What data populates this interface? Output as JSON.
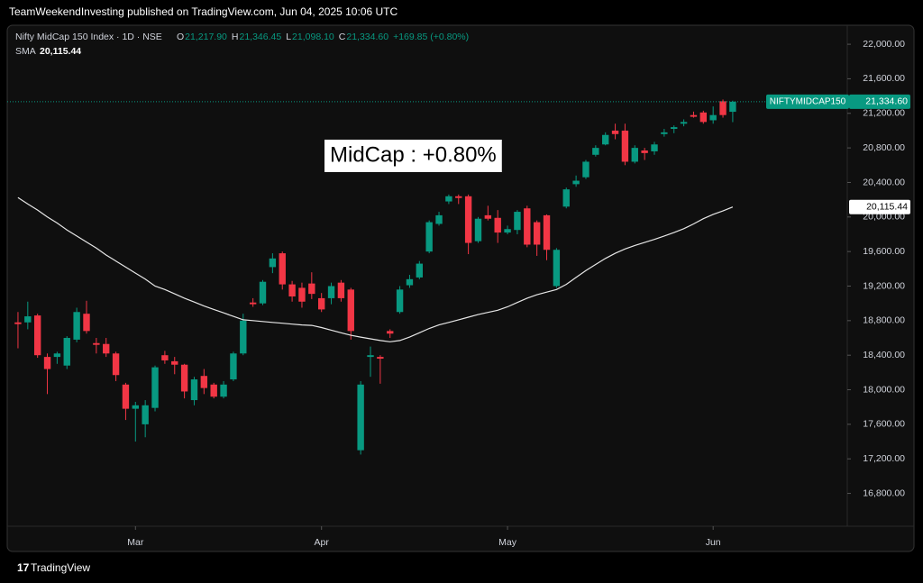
{
  "header": "TeamWeekendInvesting published on TradingView.com, Jun 04, 2025 10:06 UTC",
  "footer": "TradingView",
  "chart_data": {
    "type": "candlestick",
    "title": "Nifty MidCap 150 Index · 1D · NSE",
    "ohlc_legend": [
      {
        "key": "O",
        "text": "21,217.90"
      },
      {
        "key": "H",
        "text": "21,346.45"
      },
      {
        "key": "L",
        "text": "21,098.10"
      },
      {
        "key": "C",
        "text": "21,334.60"
      }
    ],
    "change_label": "+169.85 (+0.80%)",
    "annotation": "MidCap : +0.80%",
    "symbol_label": "NIFTYMIDCAP150",
    "last_price_label": "21,334.60",
    "up_color": "#089981",
    "down_color": "#f23645",
    "open": [
      18780,
      18780,
      18860,
      18380,
      18380,
      18280,
      18580,
      18880,
      18540,
      18530,
      18420,
      18060,
      17780,
      17600,
      17790,
      18400,
      18330,
      18290,
      17880,
      18160,
      18060,
      17920,
      18120,
      18420,
      19010,
      19000,
      19420,
      19580,
      19220,
      19180,
      19230,
      19060,
      19060,
      19240,
      19160,
      17300,
      18380,
      18380,
      18680,
      18900,
      19210,
      19300,
      19600,
      19920,
      20180,
      20240,
      20240,
      19720,
      20020,
      19990,
      19820,
      19850,
      20100,
      19940,
      20020,
      19200,
      20120,
      20380,
      20460,
      20720,
      20840,
      21000,
      21000,
      20640,
      20770,
      20760,
      20960,
      21020,
      21080,
      21180,
      21210,
      21120,
      21340,
      21217.9
    ],
    "high": [
      18900,
      19020,
      18880,
      18420,
      18440,
      18620,
      18950,
      19030,
      18600,
      18600,
      18440,
      18080,
      17860,
      17880,
      18280,
      18450,
      18380,
      18300,
      18150,
      18240,
      18080,
      18100,
      18440,
      18880,
      19060,
      19270,
      19580,
      19600,
      19260,
      19240,
      19360,
      19120,
      19240,
      19270,
      19180,
      18100,
      18500,
      18400,
      18700,
      19200,
      19330,
      19490,
      19960,
      20060,
      20260,
      20260,
      20260,
      20000,
      20130,
      20080,
      19900,
      20080,
      20130,
      19960,
      20030,
      19640,
      20340,
      20480,
      20660,
      20830,
      20980,
      21080,
      21080,
      20830,
      20800,
      20870,
      21020,
      21060,
      21130,
      21220,
      21230,
      21280,
      21360,
      21346.45
    ],
    "low": [
      18480,
      18700,
      18370,
      17950,
      18300,
      18240,
      18550,
      18650,
      18420,
      18380,
      18100,
      17650,
      17400,
      17450,
      17750,
      18300,
      18180,
      17900,
      17820,
      17950,
      17900,
      17900,
      18100,
      18400,
      18960,
      18980,
      19350,
      19160,
      19020,
      18950,
      19050,
      18900,
      18990,
      19020,
      18580,
      17250,
      18150,
      18070,
      18600,
      18880,
      19180,
      19280,
      19580,
      19900,
      20150,
      20150,
      19570,
      19700,
      19960,
      19700,
      19800,
      19800,
      19650,
      19550,
      19500,
      19180,
      20100,
      20350,
      20440,
      20700,
      20830,
      20900,
      20600,
      20620,
      20660,
      20720,
      20930,
      20970,
      21050,
      21150,
      21080,
      21080,
      21150,
      21098.1
    ],
    "close": [
      18760,
      18850,
      18400,
      18240,
      18420,
      18600,
      18900,
      18680,
      18520,
      18420,
      18170,
      17780,
      17820,
      17820,
      18260,
      18340,
      18290,
      17980,
      18120,
      18020,
      17920,
      18060,
      18420,
      18800,
      18990,
      19250,
      19520,
      19220,
      19080,
      19020,
      19110,
      18930,
      19200,
      19060,
      18680,
      18060,
      18400,
      18360,
      18650,
      19160,
      19280,
      19460,
      19940,
      20020,
      20240,
      20220,
      19700,
      19980,
      19980,
      19820,
      19860,
      20060,
      19680,
      19680,
      19620,
      19620,
      20320,
      20420,
      20640,
      20800,
      20950,
      20960,
      20640,
      20800,
      20740,
      20840,
      20980,
      21040,
      21100,
      21160,
      21100,
      21180,
      21180,
      21334.6
    ],
    "series": [
      {
        "name": "SMA",
        "color": "#e6e6e6",
        "value_label": "20,115.44",
        "values": [
          20225,
          20150,
          20080,
          20000,
          19930,
          19850,
          19780,
          19710,
          19640,
          19560,
          19490,
          19420,
          19350,
          19280,
          19200,
          19160,
          19110,
          19060,
          19015,
          18970,
          18930,
          18890,
          18850,
          18810,
          18800,
          18790,
          18780,
          18770,
          18760,
          18750,
          18745,
          18720,
          18690,
          18660,
          18630,
          18610,
          18590,
          18570,
          18555,
          18570,
          18610,
          18660,
          18710,
          18750,
          18780,
          18810,
          18840,
          18870,
          18895,
          18920,
          18960,
          19010,
          19060,
          19100,
          19130,
          19160,
          19220,
          19300,
          19380,
          19450,
          19520,
          19580,
          19630,
          19670,
          19705,
          19740,
          19780,
          19820,
          19865,
          19920,
          19980,
          20030,
          20070,
          20115.44
        ]
      }
    ],
    "xlim": [
      -1.1,
      84.7
    ],
    "xticks": [
      {
        "value": 12,
        "label": "Mar"
      },
      {
        "value": 31,
        "label": "Apr"
      },
      {
        "value": 50,
        "label": "May"
      },
      {
        "value": 71,
        "label": "Jun"
      }
    ],
    "ylim": [
      16420,
      22220
    ],
    "yticks": [
      {
        "value": 16800,
        "label": "16,800.00"
      },
      {
        "value": 17200,
        "label": "17,200.00"
      },
      {
        "value": 17600,
        "label": "17,600.00"
      },
      {
        "value": 18000,
        "label": "18,000.00"
      },
      {
        "value": 18400,
        "label": "18,400.00"
      },
      {
        "value": 18800,
        "label": "18,800.00"
      },
      {
        "value": 19200,
        "label": "19,200.00"
      },
      {
        "value": 19600,
        "label": "19,600.00"
      },
      {
        "value": 20000,
        "label": "20,000.00"
      },
      {
        "value": 20400,
        "label": "20,400.00"
      },
      {
        "value": 20800,
        "label": "20,800.00"
      },
      {
        "value": 21200,
        "label": "21,200.00"
      },
      {
        "value": 21600,
        "label": "21,600.00"
      },
      {
        "value": 22000,
        "label": "22,000.00"
      }
    ],
    "grid": false
  }
}
